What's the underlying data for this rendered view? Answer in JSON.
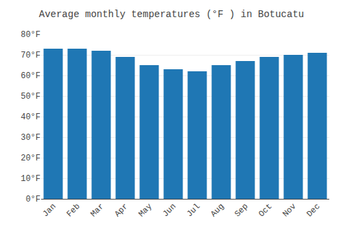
{
  "chart_data": {
    "type": "bar",
    "title": "Average monthly temperatures (°F ) in Botucatu",
    "categories": [
      "Jan",
      "Feb",
      "Mar",
      "Apr",
      "May",
      "Jun",
      "Jul",
      "Aug",
      "Sep",
      "Oct",
      "Nov",
      "Dec"
    ],
    "values": [
      73,
      73,
      72,
      69,
      65,
      63,
      62,
      65,
      67,
      69,
      70,
      71
    ],
    "ylim": [
      0,
      80
    ],
    "yticks": [
      {
        "value": 0,
        "label": "0°F"
      },
      {
        "value": 10,
        "label": "10°F"
      },
      {
        "value": 20,
        "label": "20°F"
      },
      {
        "value": 30,
        "label": "30°F"
      },
      {
        "value": 40,
        "label": "40°F"
      },
      {
        "value": 50,
        "label": "50°F"
      },
      {
        "value": 60,
        "label": "60°F"
      },
      {
        "value": 70,
        "label": "70°F"
      },
      {
        "value": 80,
        "label": "80°F"
      }
    ],
    "grid": true
  }
}
